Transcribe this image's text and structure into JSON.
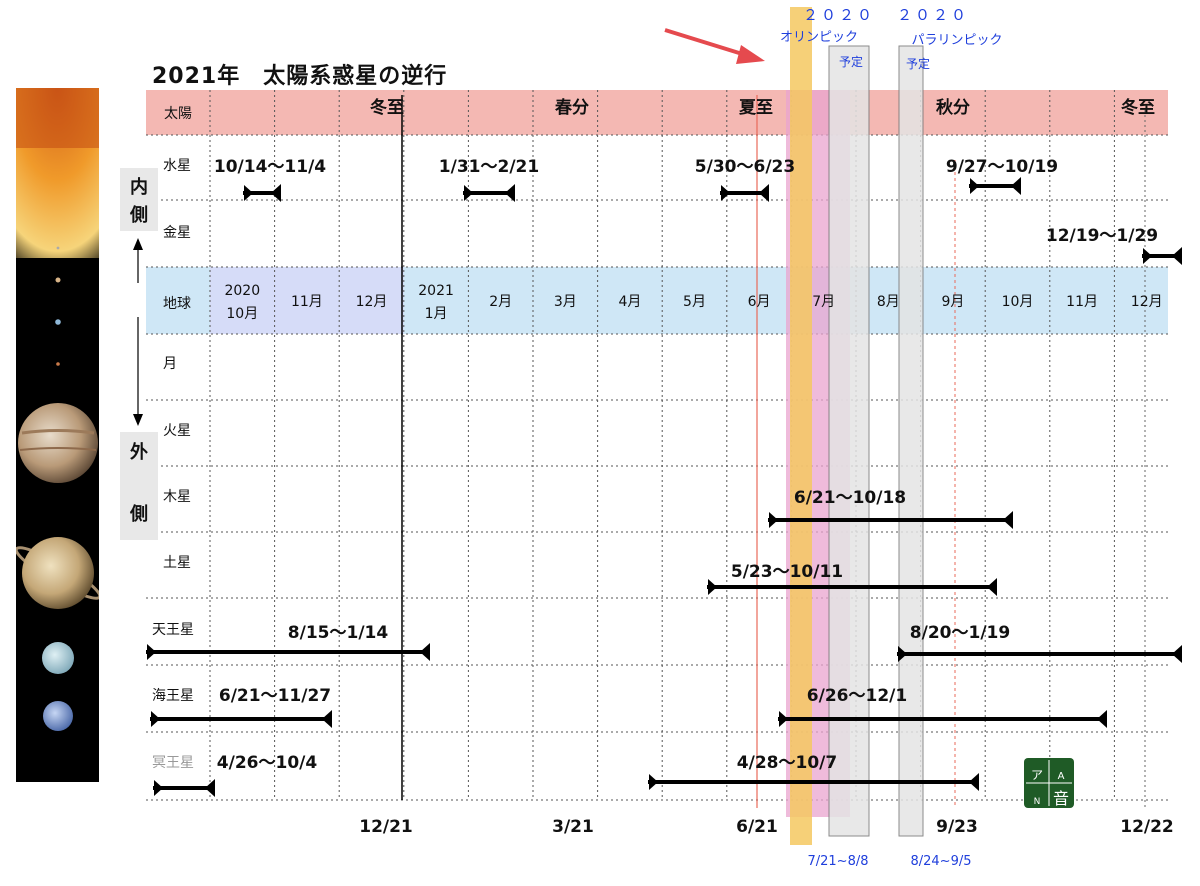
{
  "title": "2021年　太陽系惑星の逆行",
  "side_labels": {
    "inner": [
      "内",
      "側"
    ],
    "outer": [
      "外",
      "側"
    ]
  },
  "sun_row": {
    "label": "太陽",
    "seasons": [
      "冬至",
      "春分",
      "夏至",
      "秋分",
      "冬至"
    ]
  },
  "rows": [
    "水星",
    "金星",
    "地球",
    "月",
    "火星",
    "木星",
    "土星",
    "天王星",
    "海王星",
    "冥王星"
  ],
  "earth_months": [
    [
      "2020",
      "10月"
    ],
    [
      "11月"
    ],
    [
      "12月"
    ],
    [
      "2021",
      "1月"
    ],
    [
      "2月"
    ],
    [
      "3月"
    ],
    [
      "4月"
    ],
    [
      "5月"
    ],
    [
      "6月"
    ],
    [
      "7月"
    ],
    [
      "8月"
    ],
    [
      "9月"
    ],
    [
      "10月"
    ],
    [
      "11月"
    ],
    [
      "12月"
    ]
  ],
  "bottom_dates": [
    "12/21",
    "3/21",
    "6/21",
    "9/23",
    "12/22"
  ],
  "events": {
    "olympics": {
      "line1": "２０２０",
      "line2": "オリンピック",
      "planned": "予定",
      "dates": "7/21~8/8"
    },
    "paralympics": {
      "line1": "２０２０",
      "line2": "パラリンピック",
      "planned": "予定",
      "dates": "8/24~9/5"
    }
  },
  "retrogrades": [
    {
      "planet": "水星",
      "label": "10/14〜11/4"
    },
    {
      "planet": "水星",
      "label": "1/31〜2/21"
    },
    {
      "planet": "水星",
      "label": "5/30〜6/23"
    },
    {
      "planet": "水星",
      "label": "9/27〜10/19"
    },
    {
      "planet": "金星",
      "label": "12/19〜1/29"
    },
    {
      "planet": "木星",
      "label": "6/21〜10/18"
    },
    {
      "planet": "土星",
      "label": "5/23〜10/11"
    },
    {
      "planet": "天王星",
      "label": "8/15〜1/14"
    },
    {
      "planet": "天王星",
      "label": "8/20〜1/19"
    },
    {
      "planet": "海王星",
      "label": "6/21〜11/27"
    },
    {
      "planet": "海王星",
      "label": "6/26〜12/1"
    },
    {
      "planet": "冥王星",
      "label": "4/26〜10/4"
    },
    {
      "planet": "冥王星",
      "label": "4/28〜10/7"
    }
  ],
  "logo": {
    "chars": [
      "ア",
      "A",
      "N",
      "音"
    ]
  },
  "colors": {
    "sun_band": "#f4b8b3",
    "earth_band": "#cfe7f6",
    "earth_highlight": "#d6dcf8",
    "olympic_band": "#f5c860",
    "olympic_pink": "#e9a4cf",
    "event_box": "#e4e4e4",
    "event_text": "#1f3fdc",
    "arrow": "#e54a4e",
    "solstice_line": "#e86a5a",
    "logo_bg": "#1f5b26"
  }
}
